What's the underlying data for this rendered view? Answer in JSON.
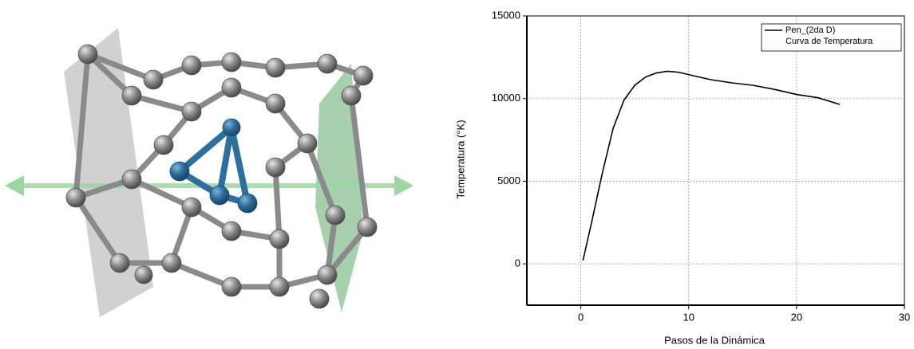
{
  "chart_data": {
    "type": "line",
    "x_label": "Pasos de la Dinámica",
    "y_label": "Temperatura (°K)",
    "x": [
      0.2,
      1,
      2,
      3,
      4,
      5,
      6,
      7,
      8,
      9,
      10,
      11,
      12,
      14,
      16,
      18,
      20,
      22,
      24
    ],
    "series": [
      {
        "name": "Pen_(2da D)",
        "color": "#000000",
        "values": [
          200,
          2500,
          5500,
          8200,
          9900,
          10800,
          11300,
          11550,
          11650,
          11600,
          11450,
          11300,
          11150,
          10950,
          10800,
          10550,
          10250,
          10050,
          9650
        ]
      }
    ],
    "legend_note": "Curva de Temperatura",
    "legend_position": "upper right",
    "xlim": [
      -5,
      30
    ],
    "xticks": [
      0,
      10,
      20,
      30
    ],
    "ylim": [
      -2500,
      15000
    ],
    "yticks": [
      0,
      5000,
      10000,
      15000
    ],
    "grid": true
  }
}
